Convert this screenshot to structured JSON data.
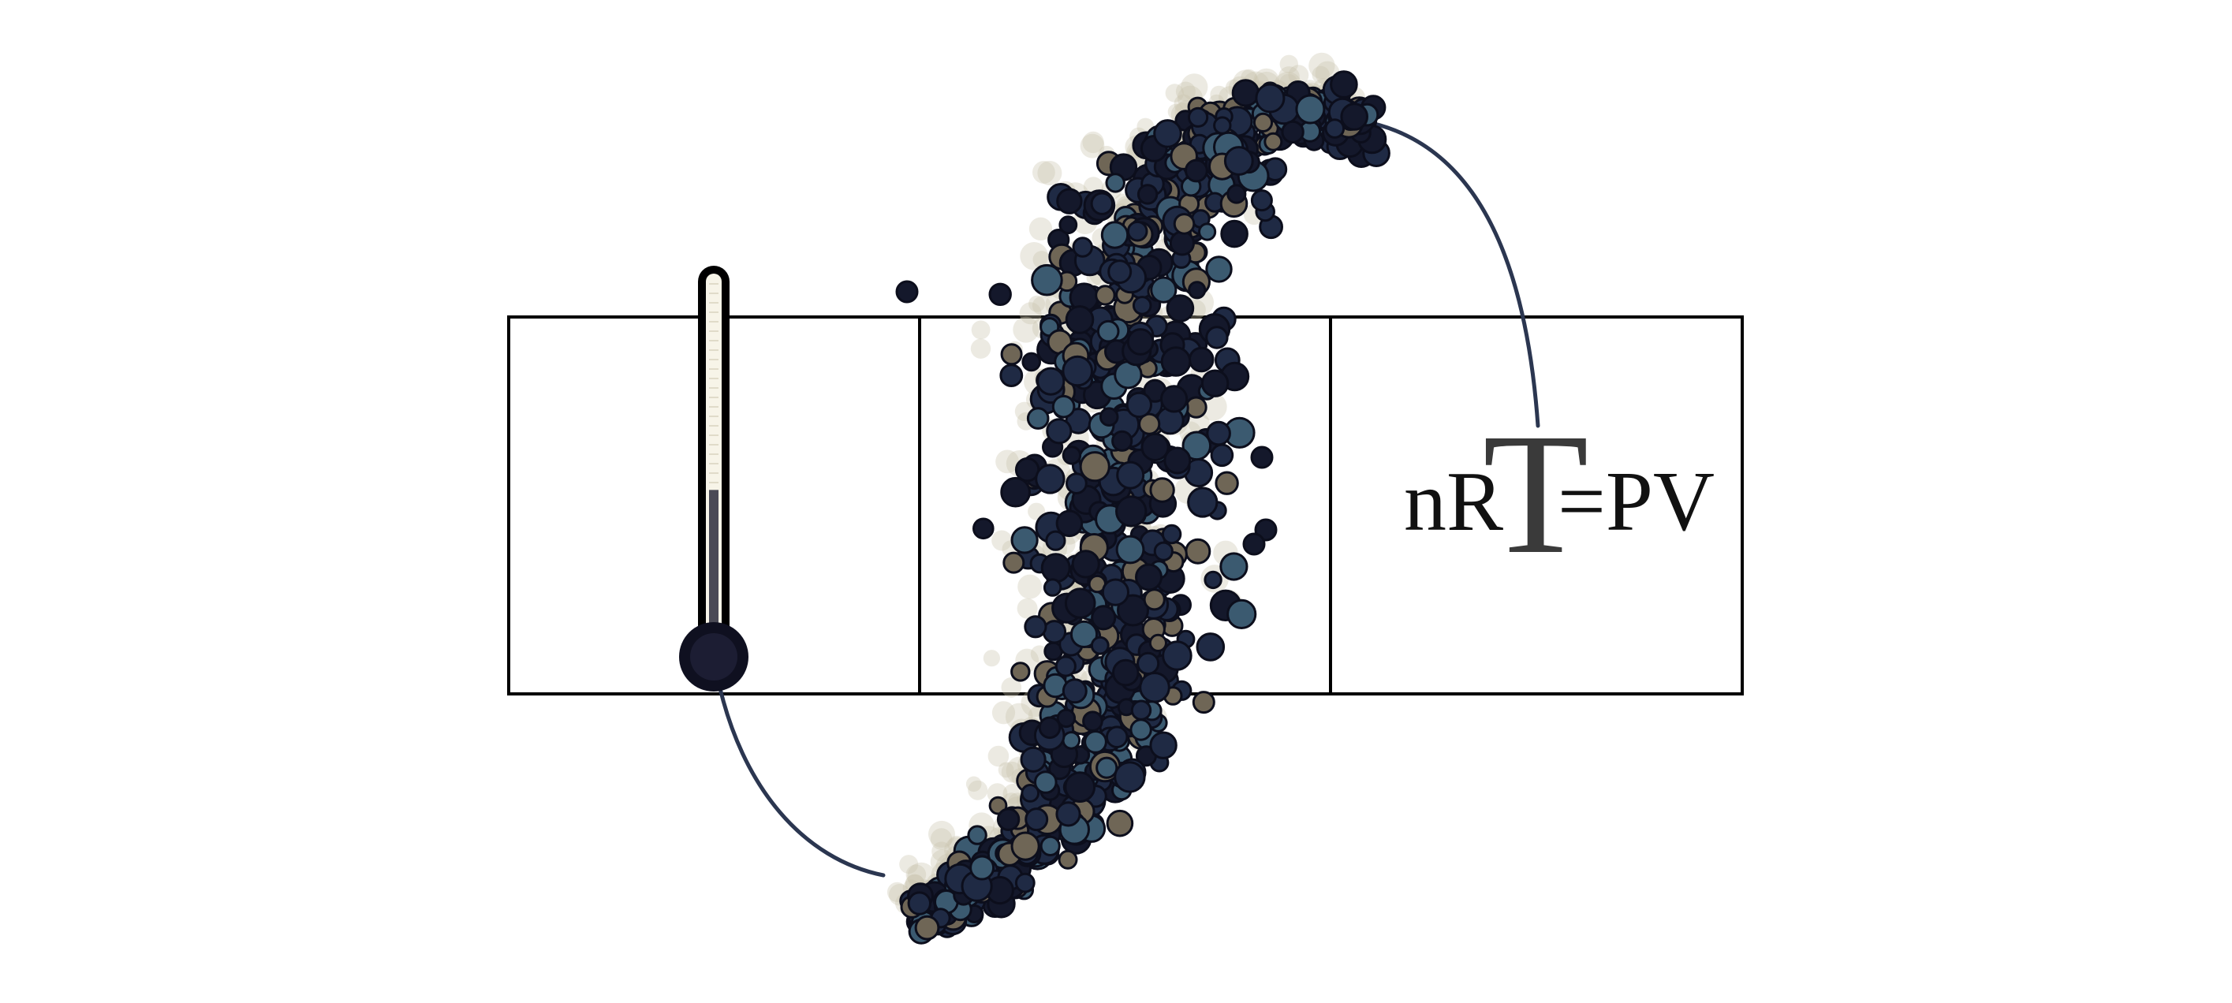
{
  "illustration": {
    "equation": {
      "left": "nR",
      "big_letter": "T",
      "right": "=PV"
    },
    "colors": {
      "background": "#ffffff",
      "outline": "#000000",
      "particle_dark": "#14182b",
      "particle_navy": "#1f2a44",
      "particle_slate": "#3b5a70",
      "particle_taupe": "#6f6656",
      "trail": "#c9c2ad",
      "equation_text": "#111111",
      "big_letter": "#3a3a3a"
    },
    "panels": 3,
    "thermometer_level": 0.42
  }
}
